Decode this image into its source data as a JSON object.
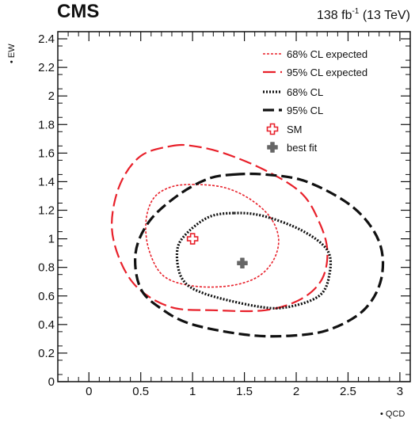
{
  "header": {
    "experiment": "CMS",
    "lumi_prefix": "138 fb",
    "lumi_exponent": "-1",
    "lumi_suffix": " (13 TeV)"
  },
  "chart_data": {
    "type": "line",
    "title": "",
    "xlabel": "• QCD",
    "ylabel": "• EW",
    "xlim": [
      -0.3,
      3.1
    ],
    "ylim": [
      0,
      2.45
    ],
    "xticks": [
      0,
      0.5,
      1,
      1.5,
      2,
      2.5,
      3
    ],
    "xtick_labels": [
      "0",
      "0.5",
      "1",
      "1.5",
      "2",
      "2.5",
      "3"
    ],
    "yticks": [
      0,
      0.2,
      0.4,
      0.6,
      0.8,
      1,
      1.2,
      1.4,
      1.6,
      1.8,
      2,
      2.2,
      2.4
    ],
    "ytick_labels": [
      "0",
      "0.2",
      "0.4",
      "0.6",
      "0.8",
      "1",
      "1.2",
      "1.4",
      "1.6",
      "1.8",
      "2",
      "2.2",
      "2.4"
    ],
    "legend_position": "top-right",
    "series": [
      {
        "name": "68% CL expected",
        "color": "#e8202a",
        "dash": "short",
        "points": [
          [
            1.0,
            1.38
          ],
          [
            1.3,
            1.36
          ],
          [
            1.55,
            1.28
          ],
          [
            1.75,
            1.15
          ],
          [
            1.83,
            1.0
          ],
          [
            1.78,
            0.85
          ],
          [
            1.62,
            0.73
          ],
          [
            1.35,
            0.67
          ],
          [
            1.0,
            0.67
          ],
          [
            0.72,
            0.74
          ],
          [
            0.58,
            0.92
          ],
          [
            0.55,
            1.12
          ],
          [
            0.62,
            1.28
          ],
          [
            0.78,
            1.36
          ]
        ]
      },
      {
        "name": "95% CL expected",
        "color": "#e8202a",
        "dash": "long",
        "points": [
          [
            0.8,
            1.65
          ],
          [
            1.0,
            1.65
          ],
          [
            1.3,
            1.6
          ],
          [
            1.7,
            1.48
          ],
          [
            2.05,
            1.32
          ],
          [
            2.22,
            1.12
          ],
          [
            2.3,
            0.92
          ],
          [
            2.25,
            0.72
          ],
          [
            2.05,
            0.58
          ],
          [
            1.7,
            0.5
          ],
          [
            1.2,
            0.5
          ],
          [
            0.8,
            0.52
          ],
          [
            0.48,
            0.65
          ],
          [
            0.3,
            0.85
          ],
          [
            0.22,
            1.1
          ],
          [
            0.3,
            1.38
          ],
          [
            0.5,
            1.58
          ]
        ]
      },
      {
        "name": "68% CL",
        "color": "#111111",
        "dash": "dotted",
        "points": [
          [
            1.4,
            1.18
          ],
          [
            1.68,
            1.16
          ],
          [
            2.05,
            1.06
          ],
          [
            2.3,
            0.92
          ],
          [
            2.32,
            0.75
          ],
          [
            2.22,
            0.6
          ],
          [
            1.9,
            0.52
          ],
          [
            1.6,
            0.53
          ],
          [
            1.1,
            0.62
          ],
          [
            0.9,
            0.72
          ],
          [
            0.85,
            0.9
          ],
          [
            0.92,
            1.02
          ],
          [
            1.15,
            1.15
          ]
        ]
      },
      {
        "name": "95% CL",
        "color": "#111111",
        "dash": "dashed",
        "points": [
          [
            1.4,
            1.45
          ],
          [
            1.7,
            1.45
          ],
          [
            2.1,
            1.4
          ],
          [
            2.55,
            1.22
          ],
          [
            2.8,
            0.98
          ],
          [
            2.82,
            0.72
          ],
          [
            2.65,
            0.5
          ],
          [
            2.3,
            0.36
          ],
          [
            1.9,
            0.32
          ],
          [
            1.5,
            0.33
          ],
          [
            1.0,
            0.4
          ],
          [
            0.72,
            0.5
          ],
          [
            0.5,
            0.65
          ],
          [
            0.45,
            0.9
          ],
          [
            0.58,
            1.12
          ],
          [
            0.85,
            1.3
          ],
          [
            1.15,
            1.42
          ]
        ]
      }
    ],
    "markers": [
      {
        "name": "SM",
        "x": 1.0,
        "y": 1.0,
        "style": "open-cross",
        "color": "#e8202a"
      },
      {
        "name": "best fit",
        "x": 1.48,
        "y": 0.83,
        "style": "filled-cross",
        "color": "#666666"
      }
    ]
  }
}
